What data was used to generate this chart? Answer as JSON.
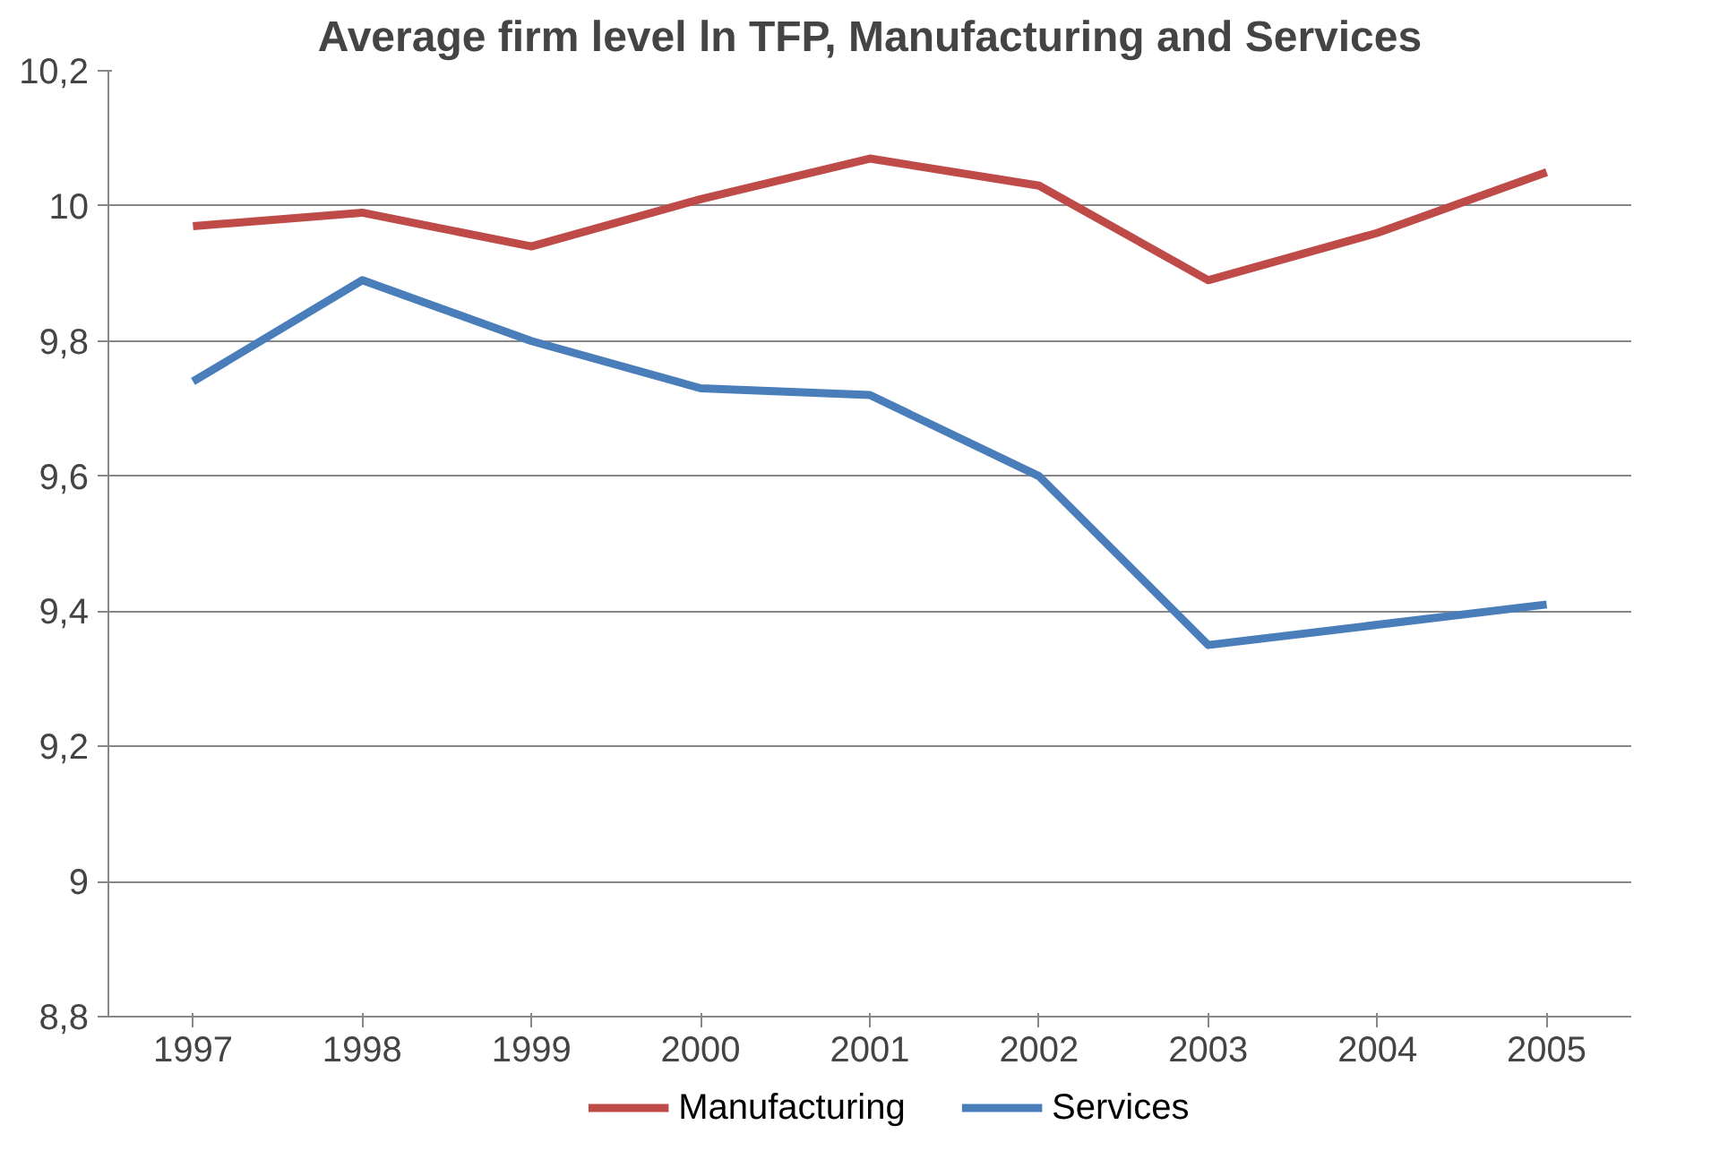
{
  "chart_data": {
    "type": "line",
    "title": "Average firm level ln TFP, Manufacturing and Services",
    "categories": [
      "1997",
      "1998",
      "1999",
      "2000",
      "2001",
      "2002",
      "2003",
      "2004",
      "2005"
    ],
    "series": [
      {
        "name": "Manufacturing",
        "color": "#be4b48",
        "values": [
          9.97,
          9.99,
          9.94,
          10.01,
          10.07,
          10.03,
          9.89,
          9.96,
          10.05
        ]
      },
      {
        "name": "Services",
        "color": "#4a7ebb",
        "values": [
          9.74,
          9.89,
          9.8,
          9.73,
          9.72,
          9.6,
          9.35,
          9.38,
          9.41
        ]
      }
    ],
    "ylim": [
      8.8,
      10.2
    ],
    "yticks": [
      {
        "value": 8.8,
        "label": "8,8"
      },
      {
        "value": 9,
        "label": "9"
      },
      {
        "value": 9.2,
        "label": "9,2"
      },
      {
        "value": 9.4,
        "label": "9,4"
      },
      {
        "value": 9.6,
        "label": "9,6"
      },
      {
        "value": 9.8,
        "label": "9,8"
      },
      {
        "value": 10,
        "label": "10"
      },
      {
        "value": 10.2,
        "label": "10,2"
      }
    ],
    "grid": "y",
    "legend": "bottom",
    "marker": "none",
    "line_style": "solid"
  }
}
